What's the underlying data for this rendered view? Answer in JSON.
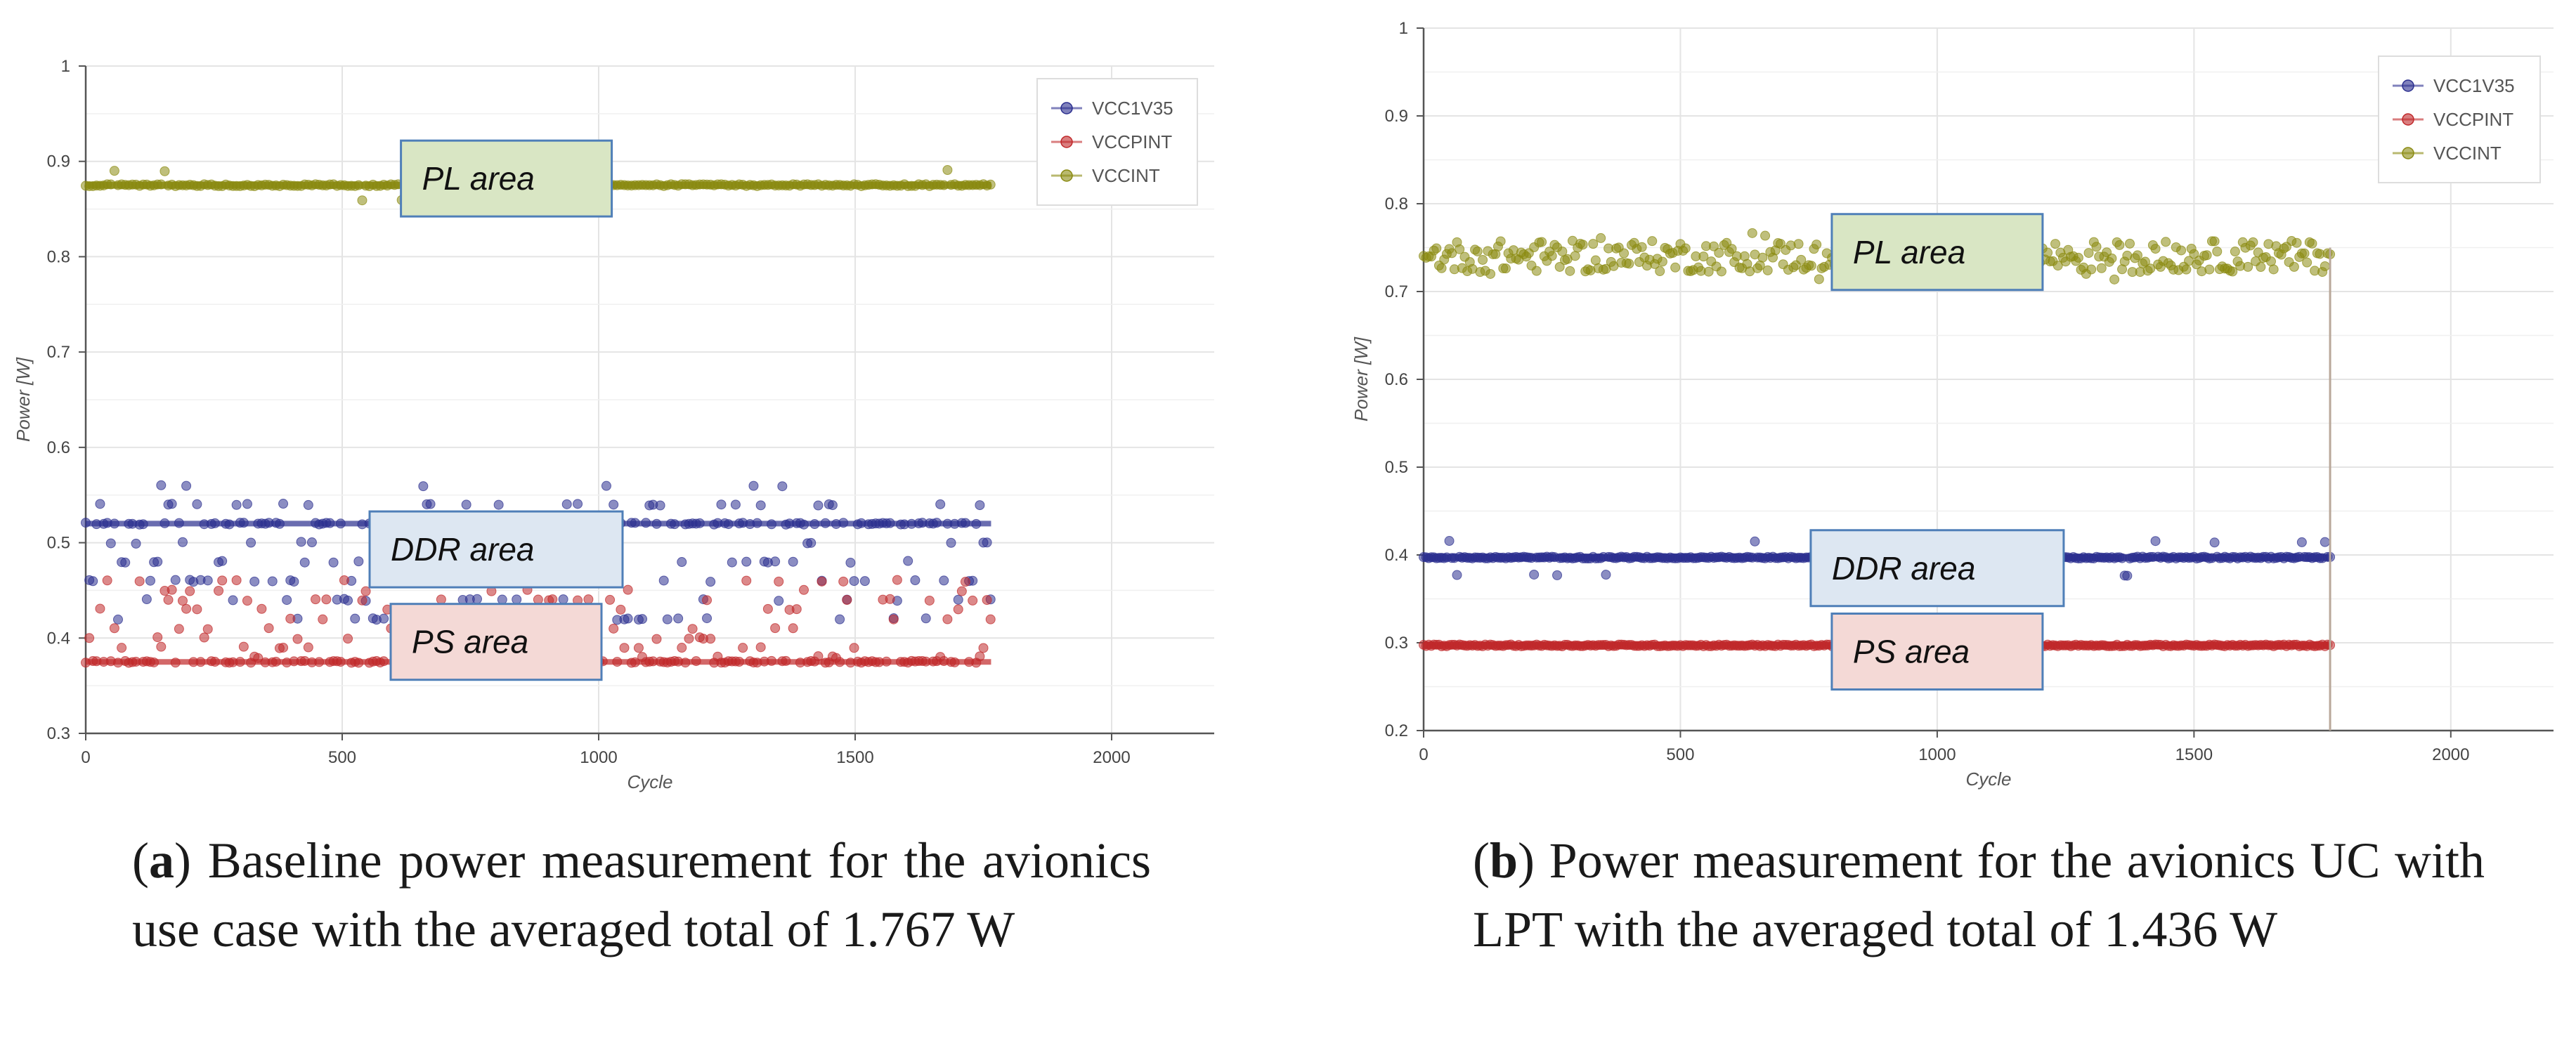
{
  "figure": {
    "captions": [
      {
        "label": "a",
        "prefix": "(",
        "suffix": ")",
        "text": " Baseline power measurement for the avionics use case with the averaged total of 1.767 W"
      },
      {
        "label": "b",
        "prefix": "(",
        "suffix": ")",
        "text": " Power measurement for the avionics UC with LPT with the averaged total of 1.436 W"
      }
    ]
  },
  "chart_data": [
    {
      "id": "a",
      "type": "scatter",
      "xlabel": "Cycle",
      "ylabel": "Power [W]",
      "xlim": [
        0,
        2200
      ],
      "ylim": [
        0.3,
        1.0
      ],
      "xticks": [
        0,
        500,
        1000,
        1500,
        2000
      ],
      "yticks": [
        0.3,
        0.4,
        0.5,
        0.6,
        0.7,
        0.8,
        0.9,
        1.0
      ],
      "ytick_labels": [
        "0.3",
        "0.4",
        "0.5",
        "0.6",
        "0.7",
        "0.8",
        "0.9",
        "1"
      ],
      "grid": true,
      "legend_position": "top-right",
      "cycles": 1765,
      "series": [
        {
          "name": "VCC1V35",
          "color": "#2b2f8f",
          "levels": [
            0.52,
            0.54,
            0.5,
            0.48,
            0.46,
            0.44,
            0.42
          ],
          "dense_level": 0.52,
          "outliers_high": 0.56
        },
        {
          "name": "VCCPINT",
          "color": "#c0282a",
          "levels": [
            0.375,
            0.38,
            0.39,
            0.4,
            0.41,
            0.42,
            0.43,
            0.44,
            0.45,
            0.46
          ],
          "dense_level": 0.375
        },
        {
          "name": "VCCINT",
          "color": "#8a8a10",
          "levels": [
            0.875
          ],
          "outliers_high": 0.89,
          "outliers_low": 0.86
        }
      ],
      "annotations": [
        {
          "text": "PL area",
          "fill": "#d9e6c4",
          "x": 820,
          "y": 0.882
        },
        {
          "text": "DDR area",
          "fill": "#dde7f2",
          "x": 800,
          "y": 0.493
        },
        {
          "text": "PS area",
          "fill": "#f4d9d6",
          "x": 800,
          "y": 0.396
        }
      ]
    },
    {
      "id": "b",
      "type": "scatter",
      "xlabel": "Cycle",
      "ylabel": "Power [W]",
      "xlim": [
        0,
        2200
      ],
      "ylim": [
        0.2,
        1.0
      ],
      "xticks": [
        0,
        500,
        1000,
        1500,
        2000
      ],
      "yticks": [
        0.2,
        0.3,
        0.4,
        0.5,
        0.6,
        0.7,
        0.8,
        0.9,
        1.0
      ],
      "ytick_labels": [
        "0.2",
        "0.3",
        "0.4",
        "0.5",
        "0.6",
        "0.7",
        "0.8",
        "0.9",
        "1"
      ],
      "grid": true,
      "legend_position": "top-right",
      "cycles": 1765,
      "series": [
        {
          "name": "VCC1V35",
          "color": "#2b2f8f",
          "levels": [
            0.397
          ],
          "outliers_high": 0.415,
          "outliers_low": 0.377
        },
        {
          "name": "VCCPINT",
          "color": "#c0282a",
          "levels": [
            0.297
          ]
        },
        {
          "name": "VCCINT",
          "color": "#8a8a10",
          "levels": [
            0.74
          ],
          "spread": [
            0.705,
            0.77
          ]
        }
      ],
      "annotations": [
        {
          "text": "PL area",
          "fill": "#d9e6c4",
          "x": 1000,
          "y": 0.745
        },
        {
          "text": "DDR area",
          "fill": "#dde7f2",
          "x": 1000,
          "y": 0.385
        },
        {
          "text": "PS area",
          "fill": "#f4d9d6",
          "x": 1000,
          "y": 0.29
        }
      ]
    }
  ]
}
